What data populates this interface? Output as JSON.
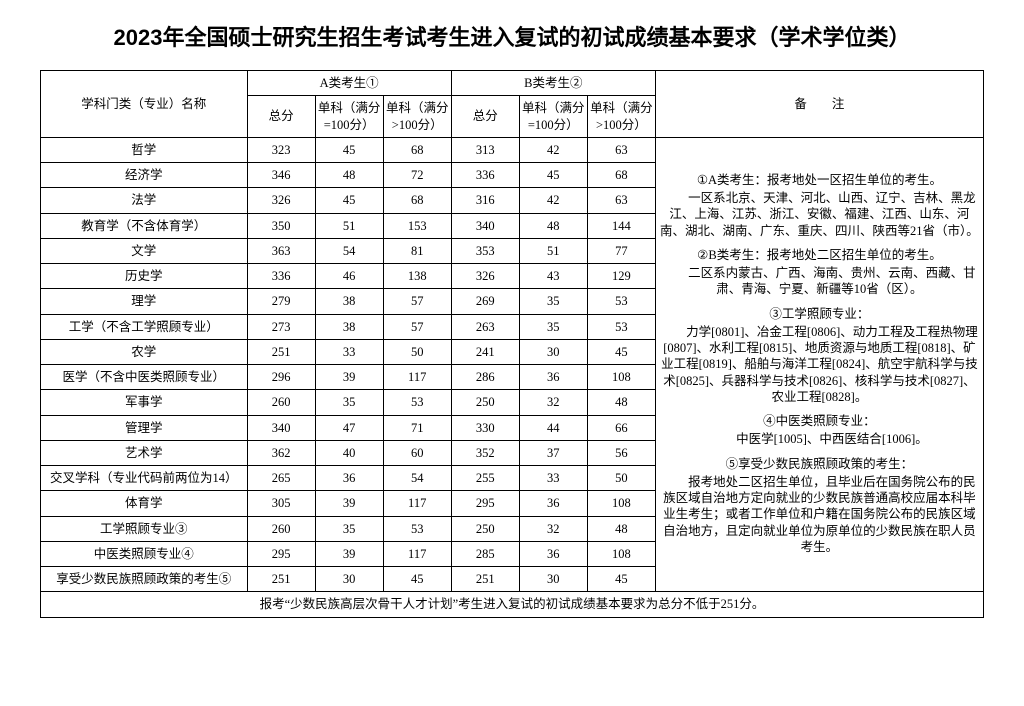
{
  "title": "2023年全国硕士研究生招生考试考生进入复试的初试成绩基本要求（学术学位类）",
  "headers": {
    "subject": "学科门类（专业）名称",
    "groupA": "A类考生①",
    "groupB": "B类考生②",
    "total": "总分",
    "sub100": "单科（满分=100分）",
    "subOver100": "单科（满分>100分）",
    "notes": "备　　注"
  },
  "rows": [
    {
      "s": "哲学",
      "a": [
        323,
        45,
        68
      ],
      "b": [
        313,
        42,
        63
      ]
    },
    {
      "s": "经济学",
      "a": [
        346,
        48,
        72
      ],
      "b": [
        336,
        45,
        68
      ]
    },
    {
      "s": "法学",
      "a": [
        326,
        45,
        68
      ],
      "b": [
        316,
        42,
        63
      ]
    },
    {
      "s": "教育学（不含体育学）",
      "a": [
        350,
        51,
        153
      ],
      "b": [
        340,
        48,
        144
      ]
    },
    {
      "s": "文学",
      "a": [
        363,
        54,
        81
      ],
      "b": [
        353,
        51,
        77
      ]
    },
    {
      "s": "历史学",
      "a": [
        336,
        46,
        138
      ],
      "b": [
        326,
        43,
        129
      ]
    },
    {
      "s": "理学",
      "a": [
        279,
        38,
        57
      ],
      "b": [
        269,
        35,
        53
      ]
    },
    {
      "s": "工学（不含工学照顾专业）",
      "a": [
        273,
        38,
        57
      ],
      "b": [
        263,
        35,
        53
      ]
    },
    {
      "s": "农学",
      "a": [
        251,
        33,
        50
      ],
      "b": [
        241,
        30,
        45
      ]
    },
    {
      "s": "医学（不含中医类照顾专业）",
      "a": [
        296,
        39,
        117
      ],
      "b": [
        286,
        36,
        108
      ]
    },
    {
      "s": "军事学",
      "a": [
        260,
        35,
        53
      ],
      "b": [
        250,
        32,
        48
      ]
    },
    {
      "s": "管理学",
      "a": [
        340,
        47,
        71
      ],
      "b": [
        330,
        44,
        66
      ]
    },
    {
      "s": "艺术学",
      "a": [
        362,
        40,
        60
      ],
      "b": [
        352,
        37,
        56
      ]
    },
    {
      "s": "交叉学科（专业代码前两位为14）",
      "a": [
        265,
        36,
        54
      ],
      "b": [
        255,
        33,
        50
      ]
    },
    {
      "s": "体育学",
      "a": [
        305,
        39,
        117
      ],
      "b": [
        295,
        36,
        108
      ]
    },
    {
      "s": "工学照顾专业③",
      "a": [
        260,
        35,
        53
      ],
      "b": [
        250,
        32,
        48
      ]
    },
    {
      "s": "中医类照顾专业④",
      "a": [
        295,
        39,
        117
      ],
      "b": [
        285,
        36,
        108
      ]
    },
    {
      "s": "享受少数民族照顾政策的考生⑤",
      "a": [
        251,
        30,
        45
      ],
      "b": [
        251,
        30,
        45
      ]
    }
  ],
  "notes": {
    "p1a": "①A类考生：报考地处一区招生单位的考生。",
    "p1b": "一区系北京、天津、河北、山西、辽宁、吉林、黑龙江、上海、江苏、浙江、安徽、福建、江西、山东、河南、湖北、湖南、广东、重庆、四川、陕西等21省（市）。",
    "p2a": "②B类考生：报考地处二区招生单位的考生。",
    "p2b": "二区系内蒙古、广西、海南、贵州、云南、西藏、甘肃、青海、宁夏、新疆等10省（区）。",
    "p3a": "③工学照顾专业：",
    "p3b": "力学[0801]、冶金工程[0806]、动力工程及工程热物理[0807]、水利工程[0815]、地质资源与地质工程[0818]、矿业工程[0819]、船舶与海洋工程[0824]、航空宇航科学与技术[0825]、兵器科学与技术[0826]、核科学与技术[0827]、农业工程[0828]。",
    "p4a": "④中医类照顾专业：",
    "p4b": "中医学[1005]、中西医结合[1006]。",
    "p5a": "⑤享受少数民族照顾政策的考生：",
    "p5b": "报考地处二区招生单位，且毕业后在国务院公布的民族区域自治地方定向就业的少数民族普通高校应届本科毕业生考生；或者工作单位和户籍在国务院公布的民族区域自治地方，且定向就业单位为原单位的少数民族在职人员考生。"
  },
  "footnote": "报考“少数民族高层次骨干人才计划”考生进入复试的初试成绩基本要求为总分不低于251分。"
}
